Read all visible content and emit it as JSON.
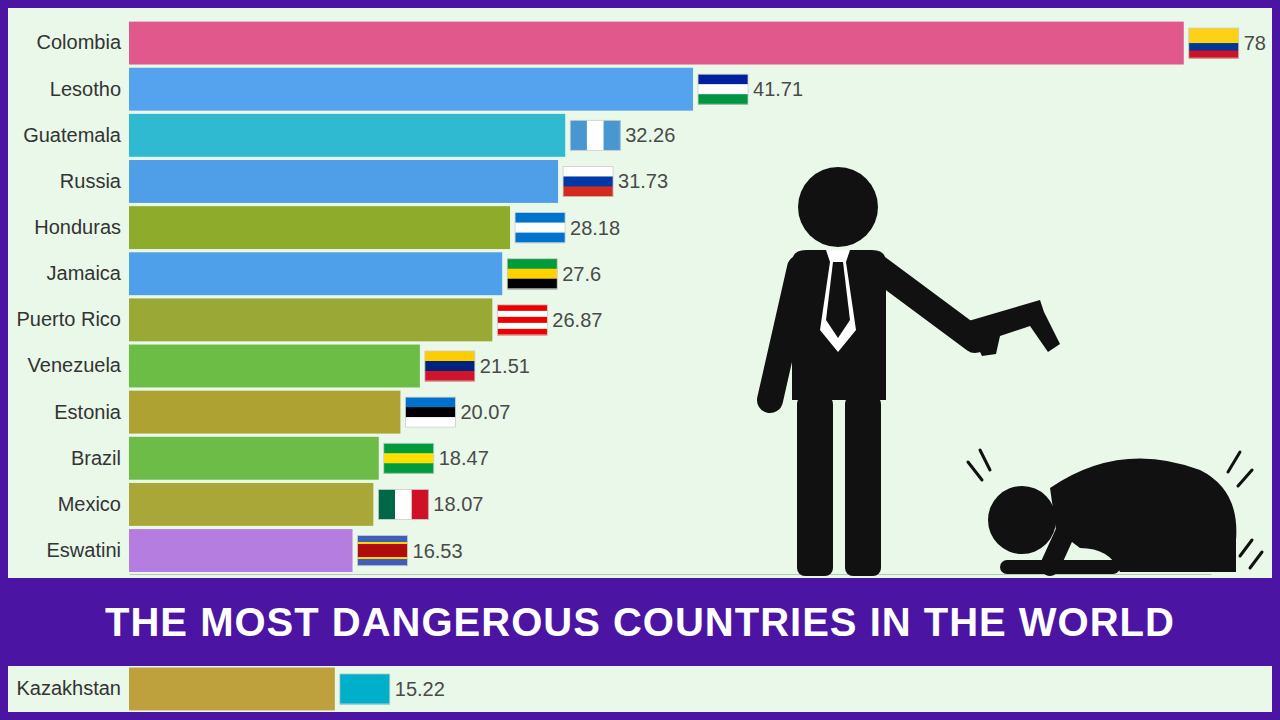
{
  "chart_data": {
    "type": "bar",
    "orientation": "horizontal",
    "title": "THE MOST DANGEROUS COUNTRIES IN THE WORLD",
    "categories": [
      "Colombia",
      "Lesotho",
      "Guatemala",
      "Russia",
      "Honduras",
      "Jamaica",
      "Puerto Rico",
      "Venezuela",
      "Estonia",
      "Brazil",
      "Mexico",
      "Eswatini",
      "Kazakhstan"
    ],
    "values": [
      78,
      41.71,
      32.26,
      31.73,
      28.18,
      27.6,
      26.87,
      21.51,
      20.07,
      18.47,
      18.07,
      16.53,
      15.22
    ],
    "colors": [
      "#e0588c",
      "#55a2ee",
      "#2fbad2",
      "#4f9fe8",
      "#8fab2c",
      "#4fa0ea",
      "#9aa935",
      "#6bbd45",
      "#ada232",
      "#6cbc47",
      "#a9a738",
      "#b57de0",
      "#bea13c"
    ],
    "xlim": [
      0,
      80
    ],
    "data_labels": true,
    "tick_labels": "y"
  }
}
